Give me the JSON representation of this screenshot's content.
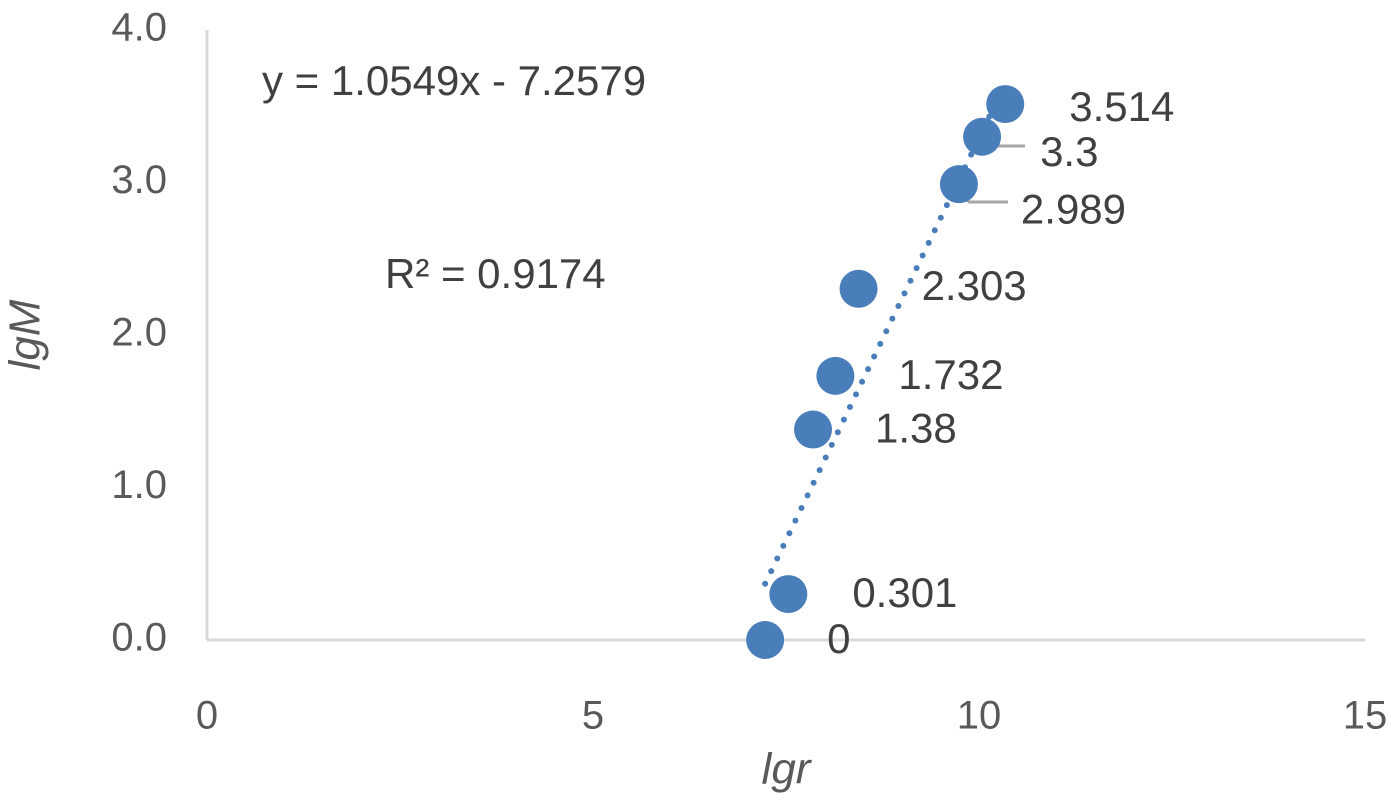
{
  "chart_data": {
    "type": "scatter",
    "x_label": "lgr",
    "y_label": "lgM",
    "xlim": [
      0,
      15
    ],
    "xticks": [
      0,
      5,
      10,
      15
    ],
    "ylim": [
      0,
      4
    ],
    "yticks": [
      {
        "value": 0,
        "label": "0.0"
      },
      {
        "value": 1,
        "label": "1.0"
      },
      {
        "value": 2,
        "label": "2.0"
      },
      {
        "value": 3,
        "label": "3.0"
      },
      {
        "value": 4,
        "label": "4.0"
      }
    ],
    "series": [
      {
        "color": "#4a7ebb",
        "x": [
          7.23,
          7.53,
          7.85,
          8.14,
          8.44,
          9.74,
          10.04,
          10.34
        ],
        "values": [
          0,
          0.301,
          1.38,
          1.732,
          2.303,
          2.989,
          3.3,
          3.514
        ]
      }
    ],
    "trendline": {
      "slope": 1.0549,
      "intercept": -7.2579,
      "equation": "y = 1.0549x - 7.2579",
      "r_squared": "R² = 0.9174"
    }
  }
}
